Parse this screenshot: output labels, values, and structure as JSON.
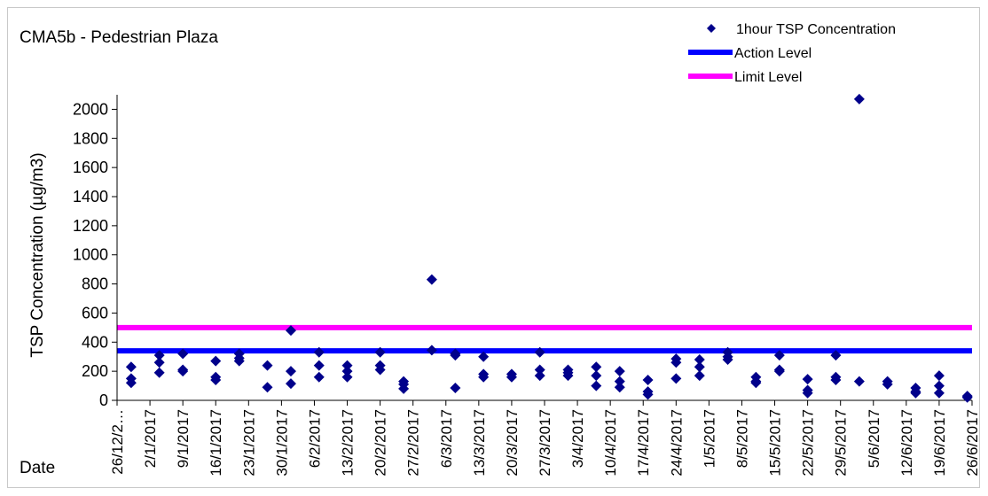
{
  "chart_data": {
    "type": "scatter",
    "title": "CMA5b - Pedestrian Plaza",
    "xlabel": "Date",
    "ylabel": "TSP Concentration (µg/m3)",
    "ylim": [
      0,
      2100
    ],
    "yticks": [
      0,
      200,
      400,
      600,
      800,
      1000,
      1200,
      1400,
      1600,
      1800,
      2000
    ],
    "xlim_days": [
      0,
      182
    ],
    "xtick_labels": [
      "26/12/2…",
      "2/1/2017",
      "9/1/2017",
      "16/1/2017",
      "23/1/2017",
      "30/1/2017",
      "6/2/2017",
      "13/2/2017",
      "20/2/2017",
      "27/2/2017",
      "6/3/2017",
      "13/3/2017",
      "20/3/2017",
      "27/3/2017",
      "3/4/2017",
      "10/4/2017",
      "17/4/2017",
      "24/4/2017",
      "1/5/2017",
      "8/5/2017",
      "15/5/2017",
      "22/5/2017",
      "29/5/2017",
      "5/6/2017",
      "12/6/2017",
      "19/6/2017",
      "26/6/2017"
    ],
    "legend_position": "top-right",
    "legend": [
      {
        "label": "1hour TSP Concentration",
        "kind": "marker",
        "color": "#00008B"
      },
      {
        "label": "Action Level",
        "kind": "line",
        "color": "#0000FF"
      },
      {
        "label": "Limit Level",
        "kind": "line",
        "color": "#FF00FF"
      }
    ],
    "series": [
      {
        "name": "1hour TSP Concentration",
        "color": "#00008B",
        "points": [
          {
            "x": "29/12/2016",
            "y": 230
          },
          {
            "x": "29/12/2016",
            "y": 150
          },
          {
            "x": "29/12/2016",
            "y": 120
          },
          {
            "x": "4/1/2017",
            "y": 310
          },
          {
            "x": "4/1/2017",
            "y": 260
          },
          {
            "x": "4/1/2017",
            "y": 190
          },
          {
            "x": "9/1/2017",
            "y": 320
          },
          {
            "x": "9/1/2017",
            "y": 210
          },
          {
            "x": "9/1/2017",
            "y": 200
          },
          {
            "x": "16/1/2017",
            "y": 270
          },
          {
            "x": "16/1/2017",
            "y": 160
          },
          {
            "x": "16/1/2017",
            "y": 140
          },
          {
            "x": "21/1/2017",
            "y": 320
          },
          {
            "x": "21/1/2017",
            "y": 290
          },
          {
            "x": "21/1/2017",
            "y": 270
          },
          {
            "x": "27/1/2017",
            "y": 240
          },
          {
            "x": "27/1/2017",
            "y": 90
          },
          {
            "x": "1/2/2017",
            "y": 480
          },
          {
            "x": "1/2/2017",
            "y": 200
          },
          {
            "x": "1/2/2017",
            "y": 115
          },
          {
            "x": "7/2/2017",
            "y": 330
          },
          {
            "x": "7/2/2017",
            "y": 240
          },
          {
            "x": "7/2/2017",
            "y": 160
          },
          {
            "x": "13/2/2017",
            "y": 240
          },
          {
            "x": "13/2/2017",
            "y": 200
          },
          {
            "x": "13/2/2017",
            "y": 160
          },
          {
            "x": "20/2/2017",
            "y": 330
          },
          {
            "x": "20/2/2017",
            "y": 240
          },
          {
            "x": "20/2/2017",
            "y": 210
          },
          {
            "x": "25/2/2017",
            "y": 130
          },
          {
            "x": "25/2/2017",
            "y": 110
          },
          {
            "x": "25/2/2017",
            "y": 80
          },
          {
            "x": "3/3/2017",
            "y": 830
          },
          {
            "x": "3/3/2017",
            "y": 345
          },
          {
            "x": "8/3/2017",
            "y": 320
          },
          {
            "x": "8/3/2017",
            "y": 310
          },
          {
            "x": "8/3/2017",
            "y": 85
          },
          {
            "x": "14/3/2017",
            "y": 300
          },
          {
            "x": "14/3/2017",
            "y": 180
          },
          {
            "x": "14/3/2017",
            "y": 160
          },
          {
            "x": "20/3/2017",
            "y": 180
          },
          {
            "x": "20/3/2017",
            "y": 160
          },
          {
            "x": "26/3/2017",
            "y": 330
          },
          {
            "x": "26/3/2017",
            "y": 210
          },
          {
            "x": "26/3/2017",
            "y": 170
          },
          {
            "x": "1/4/2017",
            "y": 210
          },
          {
            "x": "1/4/2017",
            "y": 190
          },
          {
            "x": "1/4/2017",
            "y": 170
          },
          {
            "x": "7/4/2017",
            "y": 230
          },
          {
            "x": "7/4/2017",
            "y": 170
          },
          {
            "x": "7/4/2017",
            "y": 100
          },
          {
            "x": "12/4/2017",
            "y": 200
          },
          {
            "x": "12/4/2017",
            "y": 130
          },
          {
            "x": "12/4/2017",
            "y": 90
          },
          {
            "x": "18/4/2017",
            "y": 140
          },
          {
            "x": "18/4/2017",
            "y": 60
          },
          {
            "x": "18/4/2017",
            "y": 40
          },
          {
            "x": "24/4/2017",
            "y": 285
          },
          {
            "x": "24/4/2017",
            "y": 260
          },
          {
            "x": "24/4/2017",
            "y": 150
          },
          {
            "x": "29/4/2017",
            "y": 280
          },
          {
            "x": "29/4/2017",
            "y": 230
          },
          {
            "x": "29/4/2017",
            "y": 170
          },
          {
            "x": "5/5/2017",
            "y": 330
          },
          {
            "x": "5/5/2017",
            "y": 300
          },
          {
            "x": "5/5/2017",
            "y": 280
          },
          {
            "x": "11/5/2017",
            "y": 160
          },
          {
            "x": "11/5/2017",
            "y": 130
          },
          {
            "x": "11/5/2017",
            "y": 120
          },
          {
            "x": "16/5/2017",
            "y": 310
          },
          {
            "x": "16/5/2017",
            "y": 210
          },
          {
            "x": "16/5/2017",
            "y": 200
          },
          {
            "x": "22/5/2017",
            "y": 145
          },
          {
            "x": "22/5/2017",
            "y": 70
          },
          {
            "x": "22/5/2017",
            "y": 50
          },
          {
            "x": "28/5/2017",
            "y": 310
          },
          {
            "x": "28/5/2017",
            "y": 160
          },
          {
            "x": "28/5/2017",
            "y": 140
          },
          {
            "x": "2/6/2017",
            "y": 2070
          },
          {
            "x": "2/6/2017",
            "y": 130
          },
          {
            "x": "8/6/2017",
            "y": 130
          },
          {
            "x": "8/6/2017",
            "y": 110
          },
          {
            "x": "14/6/2017",
            "y": 85
          },
          {
            "x": "14/6/2017",
            "y": 60
          },
          {
            "x": "14/6/2017",
            "y": 50
          },
          {
            "x": "19/6/2017",
            "y": 170
          },
          {
            "x": "19/6/2017",
            "y": 100
          },
          {
            "x": "19/6/2017",
            "y": 50
          },
          {
            "x": "25/6/2017",
            "y": 30
          },
          {
            "x": "25/6/2017",
            "y": 20
          }
        ]
      },
      {
        "name": "Action Level",
        "type": "hline",
        "color": "#0000FF",
        "y": 340
      },
      {
        "name": "Limit Level",
        "type": "hline",
        "color": "#FF00FF",
        "y": 500
      }
    ]
  }
}
